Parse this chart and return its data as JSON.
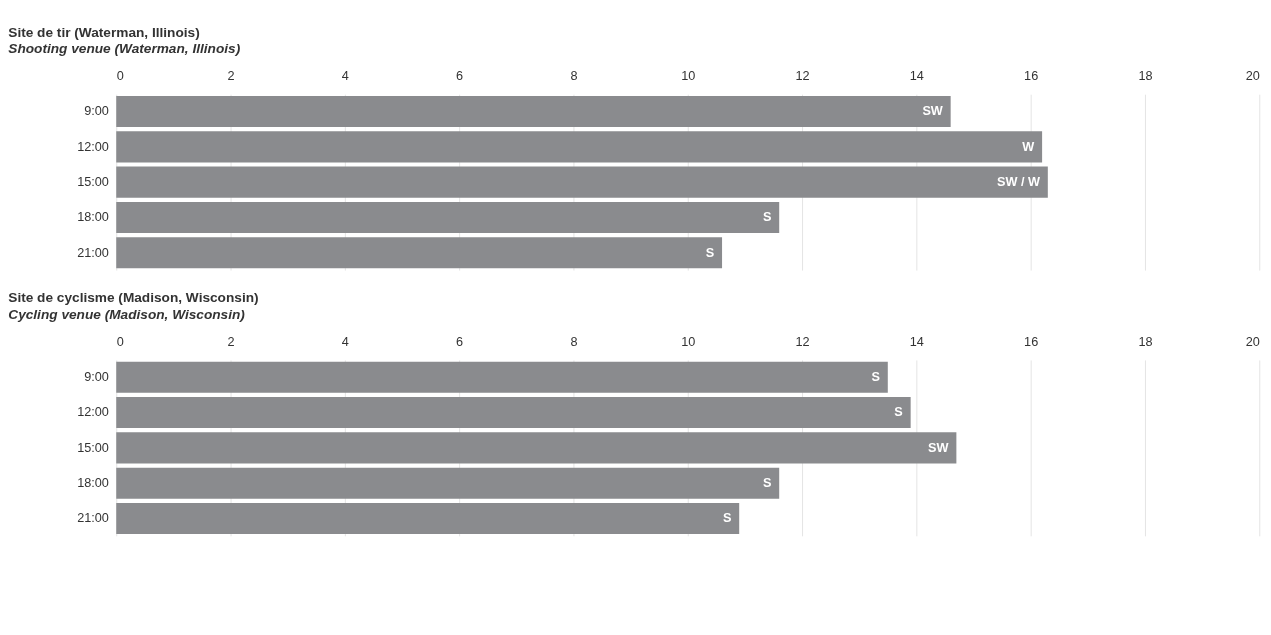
{
  "chart_data": [
    {
      "type": "bar",
      "orientation": "horizontal",
      "title": "Site de tir (Waterman, Illinois)",
      "subtitle": "Shooting venue (Waterman, Illinois)",
      "categories": [
        "9:00",
        "12:00",
        "15:00",
        "18:00",
        "21:00"
      ],
      "values": [
        14.6,
        16.2,
        16.3,
        11.6,
        10.6
      ],
      "value_labels": [
        "SW",
        "W",
        "SW / W",
        "S",
        "S"
      ],
      "color": "#8a8b8e",
      "xlim": [
        0,
        20
      ],
      "xticks": [
        0,
        2,
        4,
        6,
        8,
        10,
        12,
        14,
        16,
        18,
        20
      ],
      "grid": "x"
    },
    {
      "type": "bar",
      "orientation": "horizontal",
      "title": "Site de cyclisme (Madison, Wisconsin)",
      "subtitle": "Cycling venue (Madison, Wisconsin)",
      "categories": [
        "9:00",
        "12:00",
        "15:00",
        "18:00",
        "21:00"
      ],
      "values": [
        13.5,
        13.9,
        14.7,
        11.6,
        10.9
      ],
      "value_labels": [
        "S",
        "S",
        "SW",
        "S",
        "S"
      ],
      "color": "#8a8b8e",
      "xlim": [
        0,
        20
      ],
      "xticks": [
        0,
        2,
        4,
        6,
        8,
        10,
        12,
        14,
        16,
        18,
        20
      ],
      "grid": "x"
    }
  ]
}
